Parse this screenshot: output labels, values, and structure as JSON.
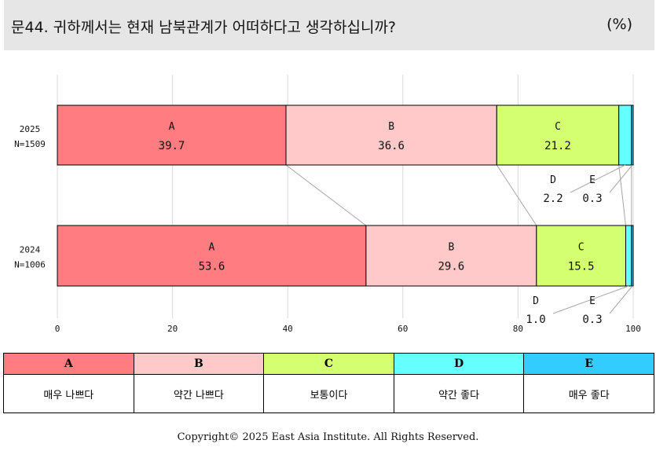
{
  "title": "문44. 귀하께서는 현재 남북관계가 어떠하다고 생각하십니까?",
  "unit": "(%)",
  "colors": {
    "A": "#ff7c80",
    "B": "#ffc9c9",
    "C": "#d3ff70",
    "D": "#66ffff",
    "E": "#33ccff"
  },
  "chart_data": {
    "type": "bar",
    "orientation": "horizontal",
    "stacked": true,
    "categories": [
      {
        "year": "2025",
        "n": "N=1509"
      },
      {
        "year": "2024",
        "n": "N=1006"
      }
    ],
    "series": [
      {
        "name": "A",
        "values": [
          39.7,
          53.6
        ]
      },
      {
        "name": "B",
        "values": [
          36.6,
          29.6
        ]
      },
      {
        "name": "C",
        "values": [
          21.2,
          15.5
        ]
      },
      {
        "name": "D",
        "values": [
          2.2,
          1.0
        ]
      },
      {
        "name": "E",
        "values": [
          0.3,
          0.3
        ]
      }
    ],
    "xlim": [
      0,
      100
    ],
    "xticks": [
      "0",
      "20",
      "40",
      "60",
      "80",
      "100"
    ],
    "grid": true
  },
  "legend": {
    "items": [
      {
        "key": "A",
        "label": "매우 나쁘다"
      },
      {
        "key": "B",
        "label": "약간 나쁘다"
      },
      {
        "key": "C",
        "label": "보통이다"
      },
      {
        "key": "D",
        "label": "약간 좋다"
      },
      {
        "key": "E",
        "label": "매우 좋다"
      }
    ]
  },
  "copyright": "Copyright© 2025 East Asia Institute. All Rights Reserved."
}
